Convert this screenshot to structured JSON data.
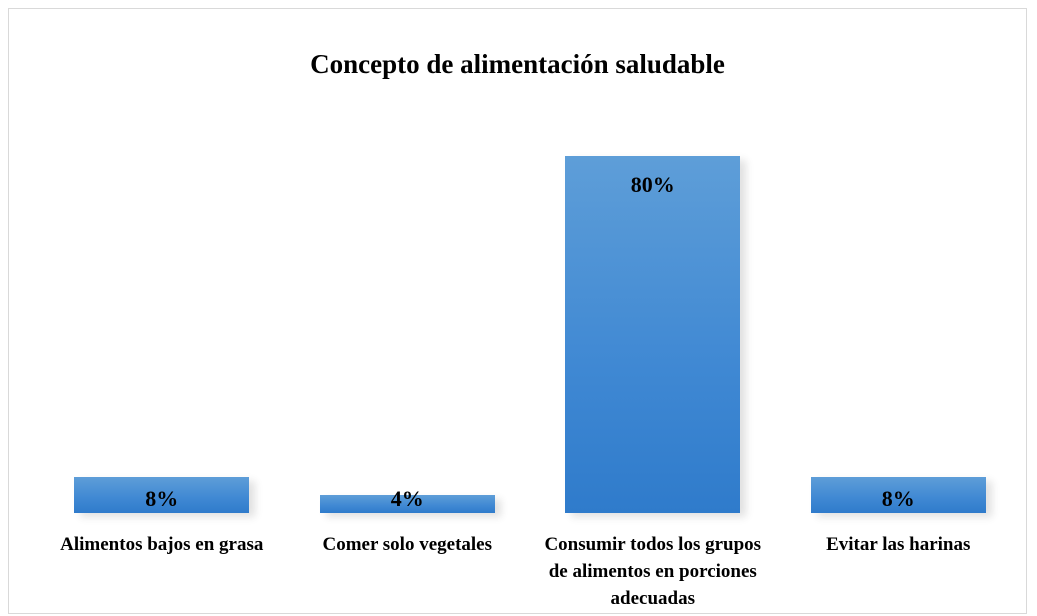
{
  "chart_data": {
    "type": "bar",
    "title": "Concepto de alimentación saludable",
    "categories": [
      "Alimentos bajos en grasa",
      "Comer solo vegetales",
      "Consumir todos los grupos de alimentos en porciones adecuadas",
      "Evitar las harinas"
    ],
    "values": [
      8,
      4,
      80,
      8
    ],
    "value_labels": [
      "8%",
      "4%",
      "80%",
      "8%"
    ],
    "color": "#3f88d3"
  }
}
